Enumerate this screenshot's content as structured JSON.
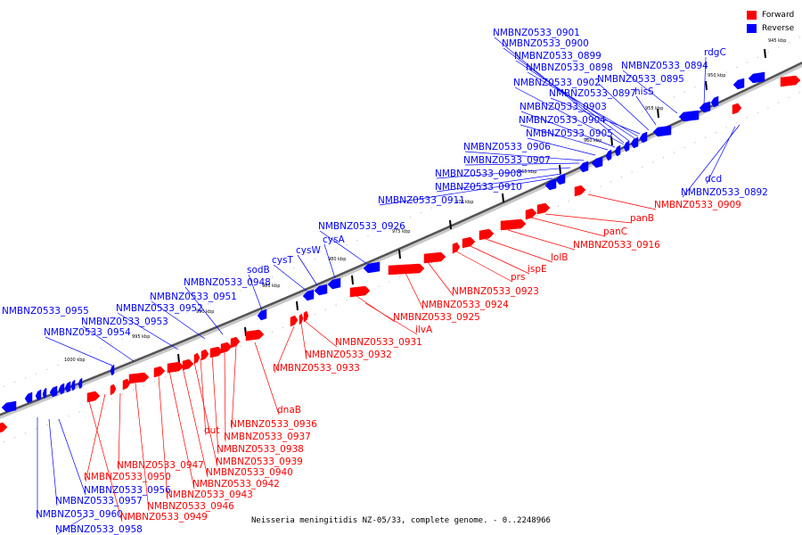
{
  "caption": "Neisseria meningitidis NZ-05/33, complete genome. - 0..2248966",
  "colors": {
    "forward": "#ff0000",
    "reverse": "#0000ff",
    "backbone": "#555555"
  },
  "legend": [
    {
      "label": "Forward",
      "color": "#ff0000"
    },
    {
      "label": "Reverse",
      "color": "#0000ff"
    }
  ],
  "ticks": [
    "945 kbp",
    "950 kbp",
    "955 kbp",
    "960 kbp",
    "965 kbp",
    "970 kbp",
    "975 kbp",
    "980 kbp",
    "985 kbp",
    "990 kbp",
    "995 kbp",
    "1000 kbp"
  ],
  "reverse_labels": [
    "NMBNZ0533_0901",
    "NMBNZ0533_0900",
    "NMBNZ0533_0899",
    "NMBNZ0533_0898",
    "NMBNZ0533_0894",
    "rdgC",
    "NMBNZ0533_0895",
    "NMBNZ0533_0902",
    "NMBNZ0533_0897",
    "hisS",
    "NMBNZ0533_0903",
    "NMBNZ0533_0904",
    "NMBNZ0533_0905",
    "NMBNZ0533_0906",
    "NMBNZ0533_0907",
    "NMBNZ0533_0908",
    "NMBNZ0533_0910",
    "NMBNZ0533_0911",
    "NMBNZ0533_0926",
    "cysA",
    "cysW",
    "cysT",
    "sodB",
    "NMBNZ0533_0948",
    "NMBNZ0533_0951",
    "NMBNZ0533_0955",
    "NMBNZ0533_0952",
    "NMBNZ0533_0953",
    "NMBNZ0533_0954",
    "dcd",
    "NMBNZ0533_0892",
    "NMBNZ0533_0956",
    "NMBNZ0533_0957",
    "NMBNZ0533_0960",
    "NMBNZ0533_0958"
  ],
  "forward_labels": [
    "NMBNZ0533_0909",
    "panB",
    "panC",
    "NMBNZ0533_0916",
    "lolB",
    "ispE",
    "prs",
    "NMBNZ0533_0923",
    "NMBNZ0533_0924",
    "NMBNZ0533_0925",
    "ilvA",
    "NMBNZ0533_0931",
    "NMBNZ0533_0932",
    "NMBNZ0533_0933",
    "dnaB",
    "NMBNZ0533_0936",
    "NMBNZ0533_0937",
    "dut",
    "NMBNZ0533_0938",
    "NMBNZ0533_0939",
    "NMBNZ0533_0940",
    "NMBNZ0533_0947",
    "NMBNZ0533_0942",
    "NMBNZ0533_0950",
    "NMBNZ0533_0943",
    "NMBNZ0533_0946",
    "NMBNZ0533_0949"
  ]
}
